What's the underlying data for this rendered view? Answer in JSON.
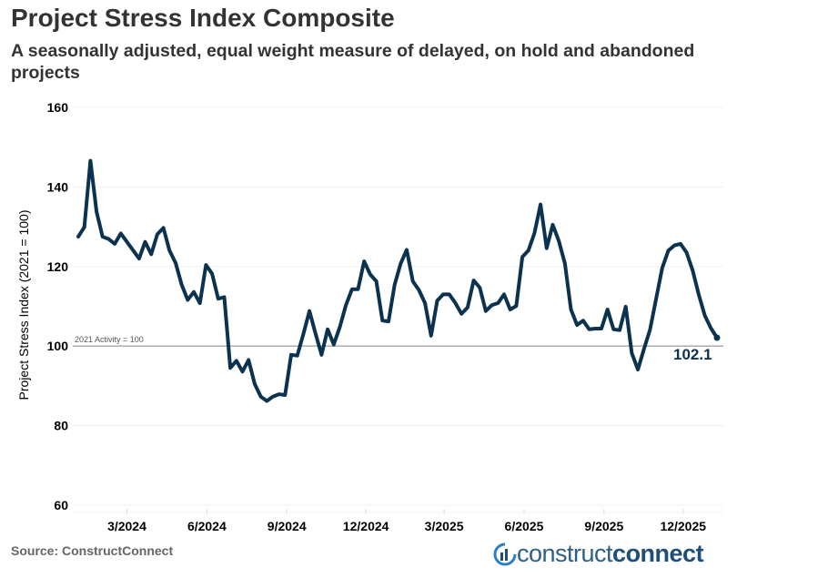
{
  "header": {
    "title": "Project Stress Index Composite",
    "subtitle": "A seasonally adjusted, equal weight measure of delayed, on hold and abandoned projects"
  },
  "footer": {
    "source": "Source: ConstructConnect",
    "logo_text_light": "construct",
    "logo_text_bold": "connect"
  },
  "chart_data": {
    "type": "line",
    "title": "Project Stress Index Composite",
    "ylabel": "Project Stress Index (2021 = 100)",
    "xlabel": "",
    "ylim": [
      60,
      160
    ],
    "yticks": [
      60,
      80,
      100,
      120,
      140,
      160
    ],
    "xticks": [
      {
        "date": "2024-03-01",
        "label": "3/2024"
      },
      {
        "date": "2024-06-01",
        "label": "6/2024"
      },
      {
        "date": "2024-09-01",
        "label": "9/2024"
      },
      {
        "date": "2024-12-01",
        "label": "12/2024"
      },
      {
        "date": "2025-03-01",
        "label": "3/2025"
      },
      {
        "date": "2025-06-01",
        "label": "6/2025"
      },
      {
        "date": "2025-09-01",
        "label": "9/2025"
      },
      {
        "date": "2025-12-01",
        "label": "12/2025"
      }
    ],
    "grid": true,
    "reference_line": {
      "value": 100,
      "label": "2021 Activity = 100"
    },
    "last_value_label": "102.1",
    "colors": {
      "line": "#0b3350",
      "reference": "#a6a6a6",
      "grid": "#f0f0f0"
    },
    "series": [
      {
        "x": [
          "2024-01-05",
          "2024-01-12",
          "2024-01-19",
          "2024-01-26",
          "2024-02-02",
          "2024-02-09",
          "2024-02-16",
          "2024-02-23",
          "2024-03-01",
          "2024-03-08",
          "2024-03-15",
          "2024-03-22",
          "2024-03-29",
          "2024-04-05",
          "2024-04-12",
          "2024-04-19",
          "2024-04-26",
          "2024-05-03",
          "2024-05-10",
          "2024-05-17",
          "2024-05-24",
          "2024-05-31",
          "2024-06-07",
          "2024-06-14",
          "2024-06-21",
          "2024-06-28",
          "2024-07-05",
          "2024-07-12",
          "2024-07-19",
          "2024-07-26",
          "2024-08-02",
          "2024-08-09",
          "2024-08-16",
          "2024-08-23",
          "2024-08-30",
          "2024-09-06",
          "2024-09-13",
          "2024-09-20",
          "2024-09-27",
          "2024-10-04",
          "2024-10-11",
          "2024-10-18",
          "2024-10-25",
          "2024-11-01",
          "2024-11-08",
          "2024-11-15",
          "2024-11-22",
          "2024-11-29",
          "2024-12-06",
          "2024-12-13",
          "2024-12-20",
          "2024-12-27",
          "2025-01-03",
          "2025-01-10",
          "2025-01-17",
          "2025-01-24",
          "2025-01-31",
          "2025-02-07",
          "2025-02-14",
          "2025-02-21",
          "2025-02-28",
          "2025-03-07",
          "2025-03-14",
          "2025-03-21",
          "2025-03-28",
          "2025-04-04",
          "2025-04-11",
          "2025-04-18",
          "2025-04-25",
          "2025-05-02",
          "2025-05-09",
          "2025-05-16",
          "2025-05-23",
          "2025-05-30",
          "2025-06-06",
          "2025-06-13",
          "2025-06-20",
          "2025-06-27",
          "2025-07-04",
          "2025-07-11",
          "2025-07-18",
          "2025-07-25",
          "2025-08-01",
          "2025-08-08",
          "2025-08-15",
          "2025-08-22",
          "2025-08-29",
          "2025-09-05",
          "2025-09-12",
          "2025-09-19",
          "2025-09-26",
          "2025-10-03",
          "2025-10-10",
          "2025-10-17",
          "2025-10-24",
          "2025-10-31",
          "2025-11-07",
          "2025-11-14",
          "2025-11-21",
          "2025-11-28",
          "2025-12-05",
          "2025-12-12",
          "2025-12-19",
          "2025-12-26",
          "2026-01-02",
          "2026-01-09"
        ],
        "values": [
          127.5,
          129.9,
          146.6,
          133.8,
          127.5,
          126.9,
          125.7,
          128.3,
          126.2,
          124.1,
          122.0,
          126.2,
          123.1,
          128.1,
          129.7,
          124.0,
          120.9,
          115.4,
          111.6,
          113.6,
          110.8,
          120.4,
          118.2,
          111.9,
          112.3,
          94.5,
          96.3,
          93.6,
          96.5,
          90.5,
          87.3,
          86.2,
          87.3,
          87.9,
          87.7,
          97.8,
          97.6,
          103.0,
          108.8,
          103.2,
          97.8,
          104.2,
          100.4,
          104.8,
          110.3,
          114.3,
          114.3,
          121.3,
          118.0,
          116.3,
          106.4,
          106.2,
          115.4,
          120.7,
          124.2,
          116.3,
          114.1,
          110.8,
          102.6,
          111.4,
          113.0,
          113.0,
          110.8,
          108.1,
          109.7,
          116.5,
          114.7,
          108.8,
          110.3,
          110.8,
          113.0,
          109.2,
          110.1,
          122.4,
          124.0,
          128.4,
          135.6,
          124.6,
          130.5,
          126.4,
          120.7,
          109.2,
          105.3,
          106.4,
          104.2,
          104.4,
          104.4,
          109.2,
          104.2,
          104.0,
          109.9,
          98.2,
          94.1,
          99.3,
          104.2,
          111.9,
          119.6,
          124.0,
          125.3,
          125.7,
          123.5,
          119.0,
          113.0,
          107.7,
          104.5,
          102.1
        ]
      }
    ]
  }
}
